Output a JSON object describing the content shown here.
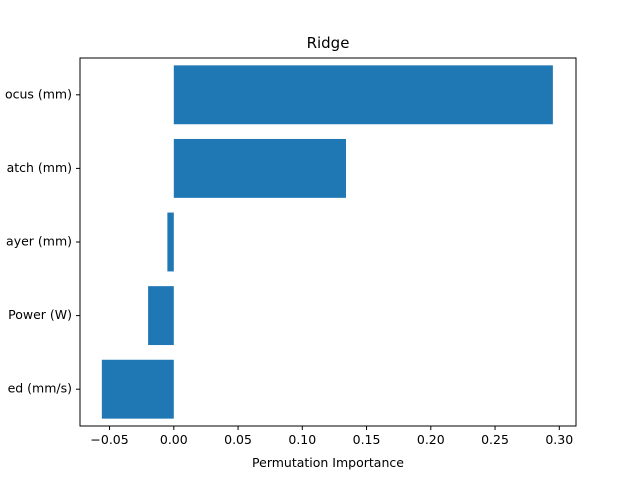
{
  "chart_data": {
    "type": "bar",
    "orientation": "horizontal",
    "title": "Ridge",
    "xlabel": "Permutation Importance",
    "ylabel": "",
    "categories": [
      "ocus (mm)",
      "atch (mm)",
      "ayer (mm)",
      "Power (W)",
      "ed (mm/s)"
    ],
    "values": [
      0.295,
      0.134,
      -0.005,
      -0.02,
      -0.056
    ],
    "xlim": [
      -0.073,
      0.313
    ],
    "xticks": [
      -0.05,
      0.0,
      0.05,
      0.1,
      0.15,
      0.2,
      0.25,
      0.3
    ],
    "xtick_labels": [
      "−0.05",
      "0.00",
      "0.05",
      "0.10",
      "0.15",
      "0.20",
      "0.25",
      "0.30"
    ],
    "grid": false,
    "bar_color": "#1f77b4"
  }
}
